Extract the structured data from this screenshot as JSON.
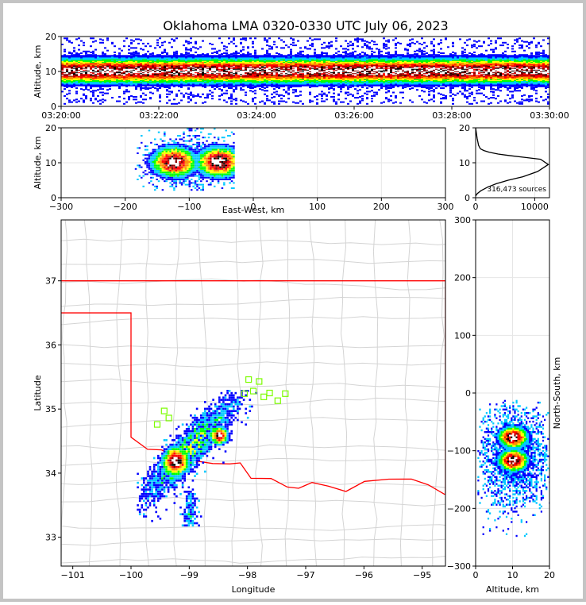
{
  "chart_data": {
    "type": "scatter",
    "title": "Oklahoma LMA 0320-0330 UTC July 06, 2023",
    "panels": [
      {
        "id": "time-altitude",
        "type": "heatmap",
        "x_ticks": [
          "03:20:00",
          "03:22:00",
          "03:24:00",
          "03:26:00",
          "03:28:00",
          "03:30:00"
        ],
        "y_ticks": [
          0,
          10,
          20
        ],
        "ylabel": "Altitude, km",
        "xlim": [
          "03:20:00",
          "03:30:00"
        ],
        "ylim": [
          0,
          20
        ],
        "density_band_km": [
          5,
          14
        ],
        "density_peak_km": 10
      },
      {
        "id": "ew-altitude",
        "type": "heatmap",
        "x_ticks": [
          -300,
          -200,
          -100,
          0,
          100,
          200,
          300
        ],
        "y_ticks": [
          0,
          10,
          20
        ],
        "xlabel": "East-West, km",
        "ylabel": "Altitude, km",
        "xlim": [
          -300,
          300
        ],
        "ylim": [
          0,
          20
        ],
        "cores": [
          {
            "x": -125,
            "alt": 10
          },
          {
            "x": -55,
            "alt": 10
          }
        ]
      },
      {
        "id": "altitude-histogram",
        "type": "line",
        "x_ticks": [
          0,
          10000
        ],
        "y_ticks": [
          0,
          10,
          20
        ],
        "xlim": [
          0,
          12500
        ],
        "ylim": [
          0,
          20
        ],
        "annotation": "316,473 sources",
        "x": [
          0,
          300,
          900,
          2000,
          3500,
          5500,
          8000,
          10500,
          12300,
          11000,
          8500,
          6000,
          3800,
          2300,
          1400,
          800,
          500,
          250,
          0
        ],
        "y": [
          0.5,
          1.2,
          2.0,
          3.0,
          4.0,
          5.0,
          6.0,
          7.5,
          9.5,
          11.0,
          11.5,
          12.0,
          12.5,
          13.0,
          13.5,
          14.0,
          15.0,
          17.0,
          20.0
        ]
      },
      {
        "id": "map",
        "type": "scatter",
        "x_ticks": [
          -101,
          -100,
          -99,
          -98,
          -97,
          -96,
          -95
        ],
        "y_ticks": [
          33,
          34,
          35,
          36,
          37
        ],
        "xlabel": "Longitude",
        "ylabel": "Latitude",
        "xlim": [
          -101.2,
          -94.6
        ],
        "ylim": [
          32.55,
          37.95
        ],
        "storm_cores": [
          {
            "lon": -99.25,
            "lat": 34.2
          },
          {
            "lon": -98.5,
            "lat": 34.6
          }
        ],
        "stations": [
          {
            "lon": -97.98,
            "lat": 35.46
          },
          {
            "lon": -97.8,
            "lat": 35.43
          },
          {
            "lon": -98.05,
            "lat": 35.24
          },
          {
            "lon": -97.9,
            "lat": 35.28
          },
          {
            "lon": -97.62,
            "lat": 35.25
          },
          {
            "lon": -97.48,
            "lat": 35.13
          },
          {
            "lon": -97.35,
            "lat": 35.24
          },
          {
            "lon": -97.72,
            "lat": 35.19
          },
          {
            "lon": -99.43,
            "lat": 34.97
          },
          {
            "lon": -99.55,
            "lat": 34.76
          },
          {
            "lon": -99.35,
            "lat": 34.86
          }
        ]
      },
      {
        "id": "altitude-ns",
        "type": "heatmap",
        "x_ticks": [
          0,
          10,
          20
        ],
        "y_ticks": [
          300,
          200,
          100,
          0,
          -100,
          -200,
          -300
        ],
        "xlabel": "Altitude, km",
        "ylabel": "North-South, km",
        "xlim": [
          0,
          20
        ],
        "ylim": [
          -300,
          300
        ],
        "cores": [
          {
            "alt": 10,
            "ns": -75
          },
          {
            "alt": 10,
            "ns": -115
          }
        ]
      }
    ]
  },
  "colors": {
    "border": "#c4c4c4",
    "state_line": "#d4d4d4",
    "boundary": "#ff0000",
    "station": "#7cfc00",
    "density_scale": [
      "#0000ff",
      "#00c8ff",
      "#00ff00",
      "#ffff00",
      "#ff8c00",
      "#ff0000",
      "#8b0000",
      "#000000",
      "#ffffff"
    ]
  }
}
